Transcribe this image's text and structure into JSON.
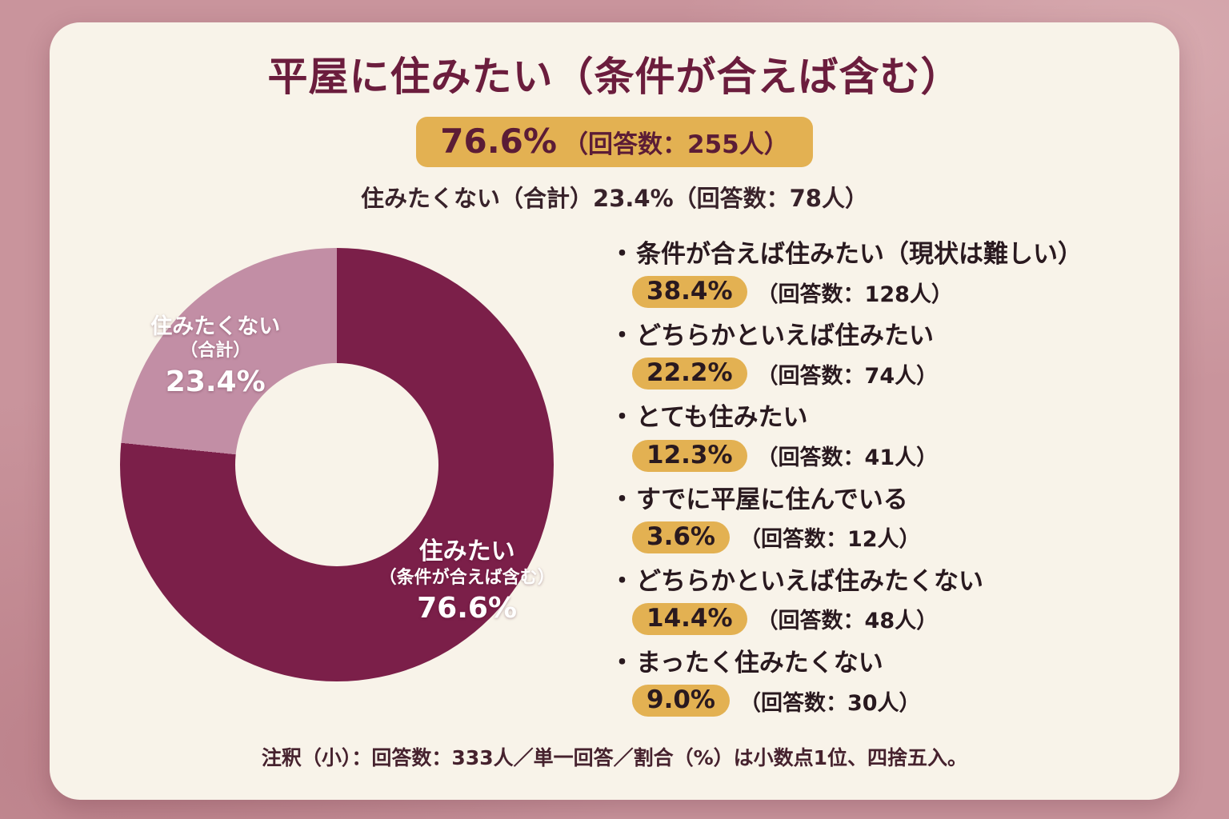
{
  "colors": {
    "background": "#c9949c",
    "card": "#f8f3e9",
    "title_maroon": "#6b1d3d",
    "gold": "#e3b152",
    "dark_slice": "#7b1f49",
    "light_slice": "#c28ea5"
  },
  "header": {
    "title": "平屋に住みたい（条件が合えば含む）",
    "main_percent": "76.6%",
    "main_count": "（回答数：255人）",
    "sub_stat": "住みたくない（合計）23.4%（回答数：78人）"
  },
  "chart_data": {
    "type": "pie",
    "donut": true,
    "title": "平屋に住みたい（条件が合えば含む）",
    "slices": [
      {
        "name": "住みたい（条件が合えば含む）",
        "value": 76.6,
        "count": 255,
        "color": "#7b1f49",
        "label_lines": [
          "住みたい",
          "（条件が合えば含む）",
          "76.6%"
        ]
      },
      {
        "name": "住みたくない（合計）",
        "value": 23.4,
        "count": 78,
        "color": "#c28ea5",
        "label_lines": [
          "住みたくない",
          "（合計）",
          "23.4%"
        ]
      }
    ],
    "detail_breakdown": [
      {
        "label": "条件が合えば住みたい（現状は難しい）",
        "value": 38.4,
        "count": 128
      },
      {
        "label": "どちらかといえば住みたい",
        "value": 22.2,
        "count": 74
      },
      {
        "label": "とても住みたい",
        "value": 12.3,
        "count": 41
      },
      {
        "label": "すでに平屋に住んでいる",
        "value": 3.6,
        "count": 12
      },
      {
        "label": "どちらかといえば住みたくない",
        "value": 14.4,
        "count": 48
      },
      {
        "label": "まったく住みたくない",
        "value": 9.0,
        "count": 30
      }
    ],
    "total_respondents": 333
  },
  "legend": {
    "bullet": "・",
    "items": [
      {
        "label": "条件が合えば住みたい（現状は難しい）",
        "percent": "38.4%",
        "count": "（回答数：128人）"
      },
      {
        "label": "どちらかといえば住みたい",
        "percent": "22.2%",
        "count": "（回答数：74人）"
      },
      {
        "label": "とても住みたい",
        "percent": "12.3%",
        "count": "（回答数：41人）"
      },
      {
        "label": "すでに平屋に住んでいる",
        "percent": "3.6%",
        "count": "（回答数：12人）"
      },
      {
        "label": "どちらかといえば住みたくない",
        "percent": "14.4%",
        "count": "（回答数：48人）"
      },
      {
        "label": "まったく住みたくない",
        "percent": "9.0%",
        "count": "（回答数：30人）"
      }
    ]
  },
  "footnote": "注釈（小）：回答数：333人／単一回答／割合（%）は小数点1位、四捨五入。"
}
